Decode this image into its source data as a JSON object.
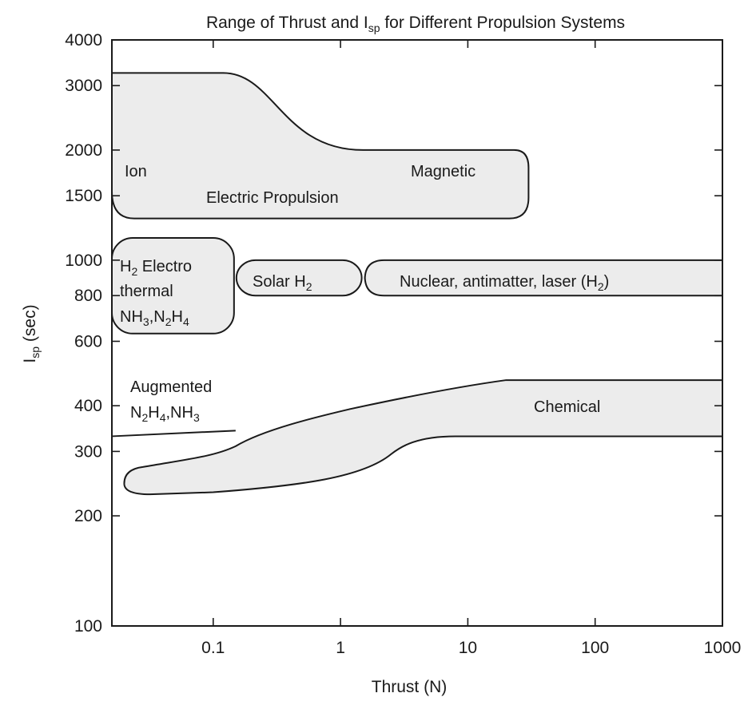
{
  "chart_data": {
    "type": "area",
    "title": "Range of Thrust and I",
    "title_subscript": "sp",
    "title_suffix": " for Different Propulsion Systems",
    "xlabel": "Thrust (N)",
    "ylabel": "I",
    "ylabel_subscript": "sp",
    "ylabel_suffix": " (sec)",
    "x_scale": "log",
    "y_scale": "log",
    "xlim": [
      0.016,
      1000
    ],
    "ylim": [
      100,
      4000
    ],
    "grid": false,
    "x_ticks": [
      {
        "value": 0.1,
        "label": "0.1"
      },
      {
        "value": 1,
        "label": "1"
      },
      {
        "value": 10,
        "label": "10"
      },
      {
        "value": 100,
        "label": "100"
      },
      {
        "value": 1000,
        "label": "1000"
      }
    ],
    "y_ticks": [
      {
        "value": 100,
        "label": "100"
      },
      {
        "value": 200,
        "label": "200"
      },
      {
        "value": 300,
        "label": "300"
      },
      {
        "value": 400,
        "label": "400"
      },
      {
        "value": 600,
        "label": "600"
      },
      {
        "value": 800,
        "label": "800"
      },
      {
        "value": 1000,
        "label": "1000"
      },
      {
        "value": 1500,
        "label": "1500"
      },
      {
        "value": 2000,
        "label": "2000"
      },
      {
        "value": 3000,
        "label": "3000"
      },
      {
        "value": 4000,
        "label": "4000"
      }
    ],
    "regions": [
      {
        "name": "Electric Propulsion",
        "labels": [
          "Ion",
          "Electric Propulsion",
          "Magnetic"
        ],
        "thrust_range": [
          0.016,
          30
        ],
        "isp_range": [
          1300,
          3250
        ]
      },
      {
        "name": "Electrothermal",
        "labels": [
          "H",
          "2",
          " Electro",
          "thermal",
          "NH",
          "3",
          ",N",
          "2",
          "H",
          "4"
        ],
        "thrust_range": [
          0.016,
          0.15
        ],
        "isp_range": [
          630,
          1150
        ]
      },
      {
        "name": "Solar H2",
        "labels": [
          "Solar H",
          "2"
        ],
        "thrust_range": [
          0.15,
          1.6
        ],
        "isp_range": [
          800,
          1000
        ]
      },
      {
        "name": "Nuclear, antimatter, laser (H2)",
        "labels": [
          "Nuclear, antimatter, laser (H",
          "2",
          ")"
        ],
        "thrust_range": [
          1.6,
          1000
        ],
        "isp_range": [
          800,
          1000
        ]
      },
      {
        "name": "Chemical",
        "labels": [
          "Chemical"
        ],
        "thrust_range": [
          0.025,
          1000
        ],
        "isp_range": [
          230,
          470
        ]
      }
    ],
    "lines": [
      {
        "name": "Augmented N2H4,NH3",
        "labels": [
          "Augmented",
          "N",
          "2",
          "H",
          "4",
          ",NH",
          "3"
        ],
        "points": [
          [
            0.016,
            330
          ],
          [
            0.15,
            342
          ]
        ]
      }
    ]
  }
}
